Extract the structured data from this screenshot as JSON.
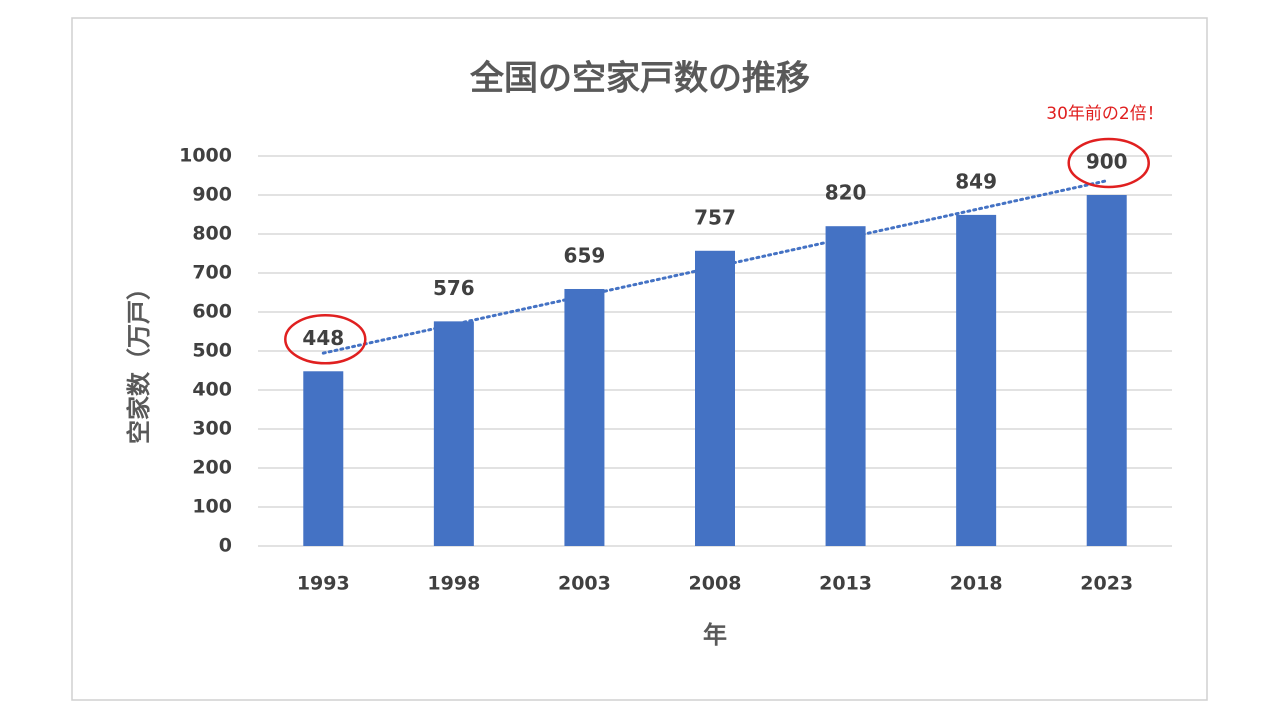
{
  "chart_data": {
    "type": "bar",
    "title": "全国の空家戸数の推移",
    "x_label": "年",
    "y_label": "空家数（万戸）",
    "categories": [
      "1993",
      "1998",
      "2003",
      "2008",
      "2013",
      "2018",
      "2023"
    ],
    "values": [
      448,
      576,
      659,
      757,
      820,
      849,
      900
    ],
    "color": "#4472c4",
    "ylim": [
      0,
      1000
    ],
    "yticks": [
      0,
      100,
      200,
      300,
      400,
      500,
      600,
      700,
      800,
      900,
      1000
    ],
    "grid": true,
    "trendline": "linear",
    "highlight": [
      0,
      6
    ],
    "highlight_color": "#e02020",
    "annotation": "30年前の2倍！"
  }
}
